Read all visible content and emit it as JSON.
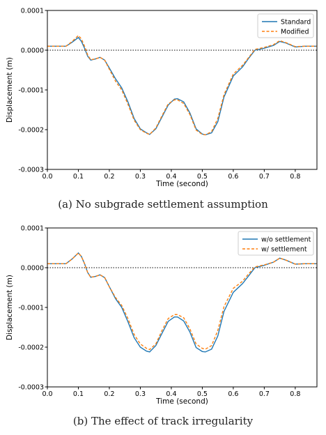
{
  "chart_data": [
    {
      "type": "line",
      "caption": "(a)  No subgrade settlement assumption",
      "xlabel": "Time (second)",
      "ylabel": "Displacement (m)",
      "xlim": [
        0.0,
        0.87
      ],
      "ylim": [
        -0.0003,
        0.0001
      ],
      "xticks": [
        "0.0",
        "0.1",
        "0.2",
        "0.3",
        "0.4",
        "0.5",
        "0.6",
        "0.7",
        "0.8"
      ],
      "yticks": [
        "0.0001",
        "0.0000",
        "-0.0001",
        "-0.0002",
        "-0.0003"
      ],
      "reference_line_y": 0.0,
      "legend_position": "top-right",
      "series": [
        {
          "name": "Standard",
          "color": "#1f77b4",
          "style": "solid",
          "x": [
            0.0,
            0.06,
            0.08,
            0.1,
            0.11,
            0.12,
            0.13,
            0.14,
            0.155,
            0.17,
            0.185,
            0.2,
            0.22,
            0.24,
            0.26,
            0.28,
            0.3,
            0.32,
            0.33,
            0.35,
            0.37,
            0.39,
            0.41,
            0.42,
            0.44,
            0.46,
            0.48,
            0.5,
            0.51,
            0.53,
            0.55,
            0.57,
            0.6,
            0.63,
            0.65,
            0.67,
            0.7,
            0.73,
            0.75,
            0.77,
            0.8,
            0.83,
            0.87
          ],
          "y": [
            1e-05,
            1e-05,
            2e-05,
            3.2e-05,
            2.2e-05,
            5e-06,
            -1.5e-05,
            -2.5e-05,
            -2.2e-05,
            -1.8e-05,
            -2.5e-05,
            -4.5e-05,
            -7.2e-05,
            -9.5e-05,
            -0.00013,
            -0.000172,
            -0.000198,
            -0.000208,
            -0.000212,
            -0.000198,
            -0.000168,
            -0.000138,
            -0.000123,
            -0.000122,
            -0.00013,
            -0.000158,
            -0.000198,
            -0.000211,
            -0.000213,
            -0.000208,
            -0.00018,
            -0.000118,
            -6.5e-05,
            -4.2e-05,
            -2e-05,
            0.0,
            5e-06,
            1.2e-05,
            2.2e-05,
            1.8e-05,
            8e-06,
            1e-05,
            1e-05
          ]
        },
        {
          "name": "Modified",
          "color": "#ff7f0e",
          "style": "dashed",
          "x": [
            0.0,
            0.06,
            0.08,
            0.1,
            0.11,
            0.12,
            0.13,
            0.14,
            0.155,
            0.17,
            0.185,
            0.2,
            0.22,
            0.24,
            0.26,
            0.28,
            0.3,
            0.32,
            0.33,
            0.35,
            0.37,
            0.39,
            0.41,
            0.42,
            0.44,
            0.46,
            0.48,
            0.5,
            0.51,
            0.53,
            0.55,
            0.57,
            0.6,
            0.63,
            0.65,
            0.67,
            0.7,
            0.73,
            0.75,
            0.77,
            0.8,
            0.83,
            0.87
          ],
          "y": [
            1e-05,
            1e-05,
            2.2e-05,
            3.7e-05,
            2.8e-05,
            1e-05,
            -1.2e-05,
            -2.4e-05,
            -2.2e-05,
            -1.8e-05,
            -2.5e-05,
            -4.8e-05,
            -7.8e-05,
            -0.0001,
            -0.000136,
            -0.000176,
            -0.0002,
            -0.000209,
            -0.000212,
            -0.000196,
            -0.000165,
            -0.000135,
            -0.000125,
            -0.000125,
            -0.000134,
            -0.000162,
            -0.000201,
            -0.000212,
            -0.000213,
            -0.000205,
            -0.000172,
            -0.000112,
            -6e-05,
            -3.8e-05,
            -1.8e-05,
            2e-06,
            7e-06,
            1.4e-05,
            2.4e-05,
            1.9e-05,
            9e-06,
            1e-05,
            1e-05
          ]
        }
      ]
    },
    {
      "type": "line",
      "caption": "(b)  The effect of track irregularity",
      "xlabel": "Time (second)",
      "ylabel": "Displacement (m)",
      "xlim": [
        0.0,
        0.87
      ],
      "ylim": [
        -0.0003,
        0.0001
      ],
      "xticks": [
        "0.0",
        "0.1",
        "0.2",
        "0.3",
        "0.4",
        "0.5",
        "0.6",
        "0.7",
        "0.8"
      ],
      "yticks": [
        "0.0001",
        "0.0000",
        "-0.0001",
        "-0.0002",
        "-0.0003"
      ],
      "reference_line_y": 0.0,
      "legend_position": "top-right",
      "series": [
        {
          "name": "w/o settlement",
          "color": "#1f77b4",
          "style": "solid",
          "x": [
            0.0,
            0.06,
            0.08,
            0.1,
            0.11,
            0.12,
            0.13,
            0.14,
            0.155,
            0.17,
            0.185,
            0.2,
            0.22,
            0.24,
            0.26,
            0.28,
            0.3,
            0.32,
            0.33,
            0.35,
            0.37,
            0.39,
            0.41,
            0.42,
            0.44,
            0.46,
            0.48,
            0.5,
            0.51,
            0.53,
            0.55,
            0.57,
            0.6,
            0.63,
            0.65,
            0.67,
            0.7,
            0.73,
            0.75,
            0.77,
            0.8,
            0.83,
            0.87
          ],
          "y": [
            1e-05,
            1e-05,
            2.2e-05,
            3.7e-05,
            2.8e-05,
            1e-05,
            -1.2e-05,
            -2.4e-05,
            -2.2e-05,
            -1.8e-05,
            -2.5e-05,
            -4.8e-05,
            -7.8e-05,
            -0.0001,
            -0.000136,
            -0.000176,
            -0.0002,
            -0.00021,
            -0.000212,
            -0.000196,
            -0.000165,
            -0.000135,
            -0.000124,
            -0.000124,
            -0.000134,
            -0.000162,
            -0.000201,
            -0.000211,
            -0.000212,
            -0.000205,
            -0.000172,
            -0.00011,
            -6.2e-05,
            -4e-05,
            -2e-05,
            0.0,
            6e-06,
            1.4e-05,
            2.4e-05,
            1.9e-05,
            9e-06,
            1e-05,
            1e-05
          ]
        },
        {
          "name": "w/ settlement",
          "color": "#ff7f0e",
          "style": "dashed",
          "x": [
            0.0,
            0.06,
            0.08,
            0.1,
            0.11,
            0.12,
            0.13,
            0.14,
            0.155,
            0.17,
            0.185,
            0.2,
            0.22,
            0.24,
            0.26,
            0.28,
            0.3,
            0.32,
            0.33,
            0.35,
            0.37,
            0.39,
            0.41,
            0.42,
            0.44,
            0.46,
            0.48,
            0.5,
            0.51,
            0.53,
            0.55,
            0.57,
            0.6,
            0.63,
            0.65,
            0.67,
            0.7,
            0.73,
            0.75,
            0.77,
            0.8,
            0.83,
            0.87
          ],
          "y": [
            1e-05,
            1e-05,
            2.2e-05,
            3.7e-05,
            2.8e-05,
            1e-05,
            -1.2e-05,
            -2.4e-05,
            -2.2e-05,
            -1.8e-05,
            -2.5e-05,
            -4.8e-05,
            -7.5e-05,
            -9.5e-05,
            -0.000128,
            -0.000168,
            -0.000192,
            -0.000203,
            -0.000206,
            -0.000192,
            -0.000158,
            -0.000128,
            -0.000118,
            -0.000118,
            -0.000126,
            -0.000154,
            -0.000192,
            -0.000203,
            -0.000205,
            -0.000196,
            -0.000158,
            -9.8e-05,
            -5.2e-05,
            -3.4e-05,
            -1.5e-05,
            2e-06,
            7e-06,
            1.4e-05,
            2.4e-05,
            1.9e-05,
            9e-06,
            1e-05,
            1e-05
          ]
        }
      ]
    }
  ]
}
